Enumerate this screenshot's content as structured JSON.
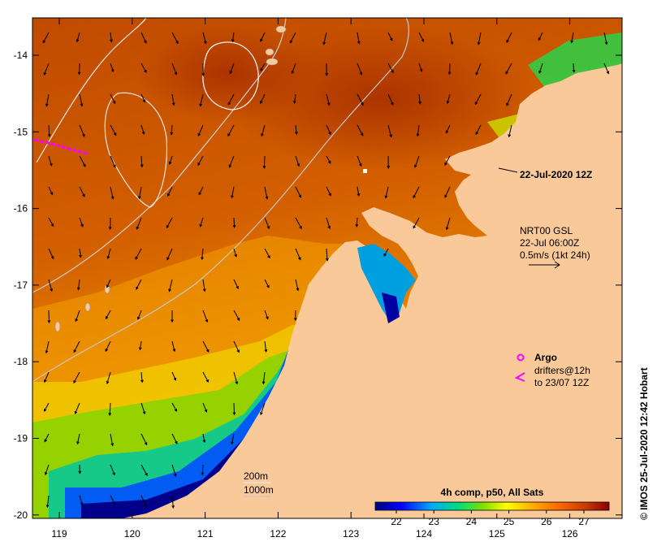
{
  "map": {
    "lon_ticks": [
      "119",
      "120",
      "121",
      "122",
      "123",
      "124",
      "125",
      "126"
    ],
    "lat_ticks": [
      "-14",
      "-15",
      "-16",
      "-17",
      "-18",
      "-19",
      "-20"
    ]
  },
  "annotations": {
    "date_label": "22-Jul-2020 12Z",
    "current_source": "NRT00 GSL",
    "current_time": "22-Jul 06:00Z",
    "current_scale": "0.5m/s (1kt 24h)",
    "argo_label": "Argo",
    "drifters_line1": "drifters@12h",
    "drifters_line2": "to 23/07 12Z",
    "contour_200": "200m",
    "contour_1000": "1000m",
    "colorbar_title": "4h comp, p50, All Sats",
    "colorbar_ticks": [
      "22",
      "23",
      "24",
      "25",
      "26",
      "27"
    ],
    "credit": "© IMOS 25-Jul-2020 12:42 Hobart"
  },
  "colors": {
    "land": "#f9c99a",
    "argo_magenta": "#ff00ff",
    "contour": "#e8e8e8",
    "sst_scale": [
      "#00007f",
      "#0000ff",
      "#00aaff",
      "#00ff99",
      "#7fff00",
      "#ffff00",
      "#ffaa00",
      "#ff5500",
      "#c03000",
      "#8b0000"
    ]
  },
  "icons": {
    "argo": "argo-float-circle-icon",
    "drifter": "drifter-chevron-icon",
    "arrow": "current-arrow-icon"
  }
}
